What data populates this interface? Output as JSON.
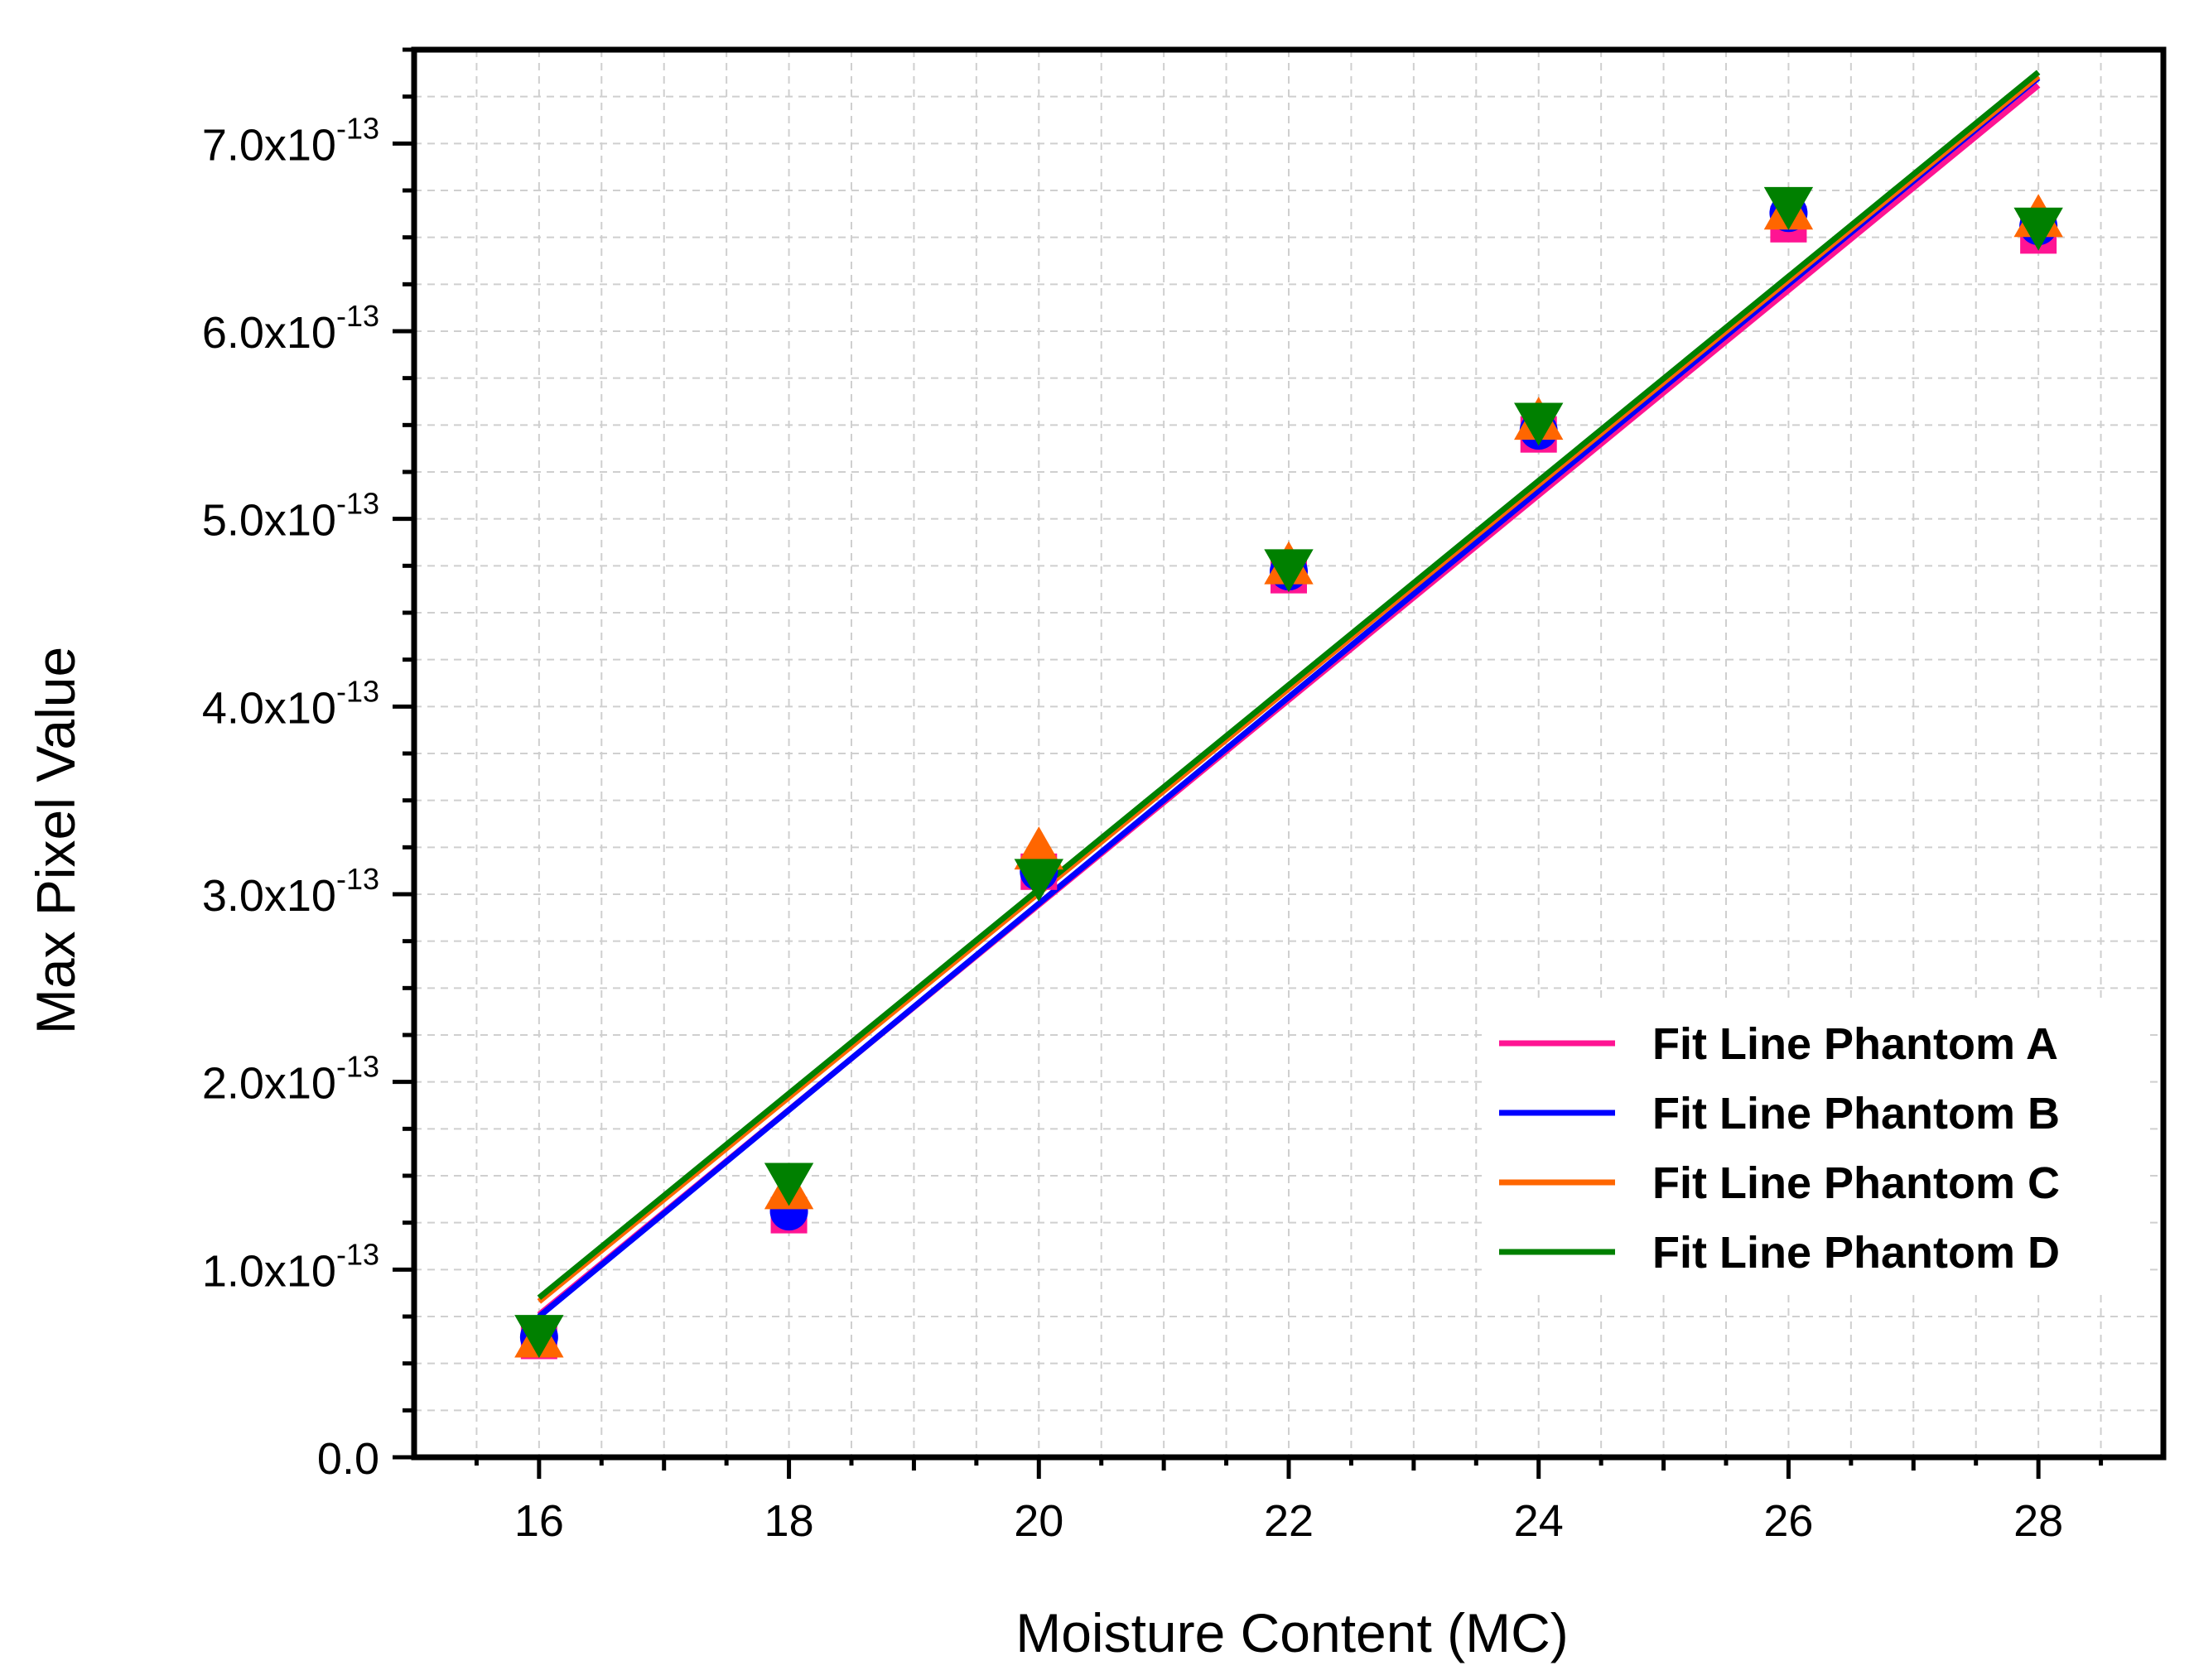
{
  "chart_data": {
    "type": "scatter",
    "title": "",
    "xlabel": "Moisture Content (MC)",
    "ylabel": "Max Pixel Value",
    "xlim": [
      15,
      29
    ],
    "ylim": [
      0,
      7.5e-13
    ],
    "grid": true,
    "legend_position": "bottom-right",
    "x_ticks": [
      16,
      18,
      20,
      22,
      24,
      26,
      28
    ],
    "x_tick_labels": [
      "16",
      "18",
      "20",
      "22",
      "24",
      "26",
      "28"
    ],
    "y_ticks": [
      0,
      1e-13,
      2e-13,
      3e-13,
      4e-13,
      5e-13,
      6e-13,
      7e-13
    ],
    "y_tick_labels": [
      {
        "mantissa": "0.0",
        "exponent": ""
      },
      {
        "mantissa": "1.0x10",
        "exponent": "-13"
      },
      {
        "mantissa": "2.0x10",
        "exponent": "-13"
      },
      {
        "mantissa": "3.0x10",
        "exponent": "-13"
      },
      {
        "mantissa": "4.0x10",
        "exponent": "-13"
      },
      {
        "mantissa": "5.0x10",
        "exponent": "-13"
      },
      {
        "mantissa": "6.0x10",
        "exponent": "-13"
      },
      {
        "mantissa": "7.0x10",
        "exponent": "-13"
      }
    ],
    "series": [
      {
        "name": "Phantom A",
        "marker": "square",
        "color": "#ff1493",
        "x": [
          16,
          18,
          20,
          22,
          24,
          26,
          28
        ],
        "values": [
          6.2e-14,
          1.29e-13,
          3.12e-13,
          4.7e-13,
          5.45e-13,
          6.57e-13,
          6.51e-13
        ],
        "fit_label": "Fit Line Phantom A",
        "fit": {
          "x": [
            16,
            28
          ],
          "y": [
            7.6e-14,
            7.31e-13
          ]
        }
      },
      {
        "name": "Phantom B",
        "marker": "circle",
        "color": "#0000ff",
        "x": [
          16,
          18,
          20,
          22,
          24,
          26,
          28
        ],
        "values": [
          6.4e-14,
          1.31e-13,
          3.12e-13,
          4.72e-13,
          5.47e-13,
          6.63e-13,
          6.56e-13
        ],
        "fit_label": "Fit Line Phantom B",
        "fit": {
          "x": [
            16,
            28
          ],
          "y": [
            7.5e-14,
            7.35e-13
          ]
        }
      },
      {
        "name": "Phantom C",
        "marker": "triangle-up",
        "color": "#ff6600",
        "x": [
          16,
          18,
          20,
          22,
          24,
          26,
          28
        ],
        "values": [
          6.3e-14,
          1.42e-13,
          3.23e-13,
          4.75e-13,
          5.52e-13,
          6.64e-13,
          6.6e-13
        ],
        "fit_label": "Fit Line Phantom C",
        "fit": {
          "x": [
            16,
            28
          ],
          "y": [
            8.3e-14,
            7.36e-13
          ]
        }
      },
      {
        "name": "Phantom D",
        "marker": "triangle-down",
        "color": "#008000",
        "x": [
          16,
          18,
          20,
          22,
          24,
          26,
          28
        ],
        "values": [
          6.6e-14,
          1.47e-13,
          3.09e-13,
          4.74e-13,
          5.52e-13,
          6.67e-13,
          6.56e-13
        ],
        "fit_label": "Fit Line Phantom D",
        "fit": {
          "x": [
            16,
            28
          ],
          "y": [
            8.5e-14,
            7.38e-13
          ]
        }
      }
    ]
  }
}
